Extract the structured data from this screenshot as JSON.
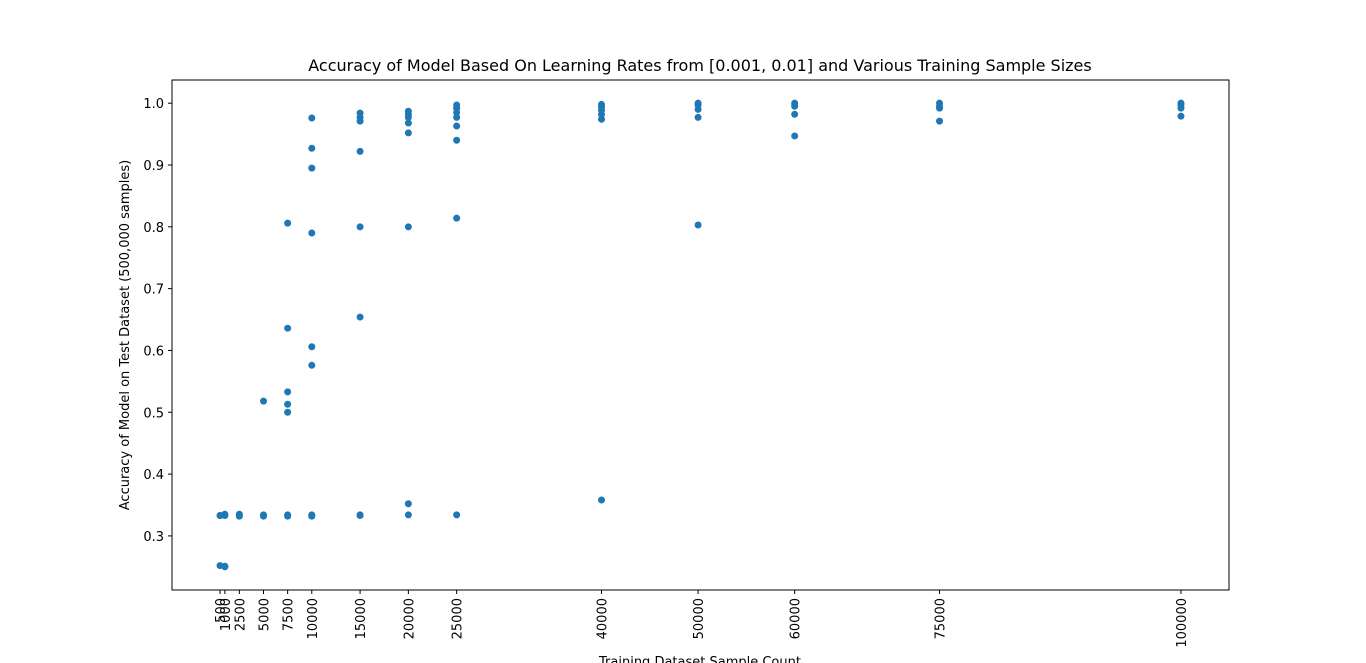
{
  "chart_data": {
    "type": "scatter",
    "title": "Accuracy of Model Based On Learning Rates from [0.001, 0.01] and Various Training Sample Sizes",
    "x_label": "Training Dataset Sample Count",
    "y_label": "Accuracy of Model on Test Dataset (500,000 samples)",
    "series": [
      {
        "color": "#1f77b4",
        "x": [
          500,
          500,
          500,
          1000,
          1000,
          1000,
          1000,
          2500,
          2500,
          5000,
          5000,
          5000,
          7500,
          7500,
          7500,
          7500,
          7500,
          7500,
          7500,
          10000,
          10000,
          10000,
          10000,
          10000,
          10000,
          10000,
          10000,
          15000,
          15000,
          15000,
          15000,
          15000,
          15000,
          15000,
          15000,
          20000,
          20000,
          20000,
          20000,
          20000,
          20000,
          20000,
          20000,
          25000,
          25000,
          25000,
          25000,
          25000,
          25000,
          25000,
          25000,
          40000,
          40000,
          40000,
          40000,
          40000,
          40000,
          50000,
          50000,
          50000,
          50000,
          50000,
          60000,
          60000,
          60000,
          60000,
          75000,
          75000,
          75000,
          75000,
          100000,
          100000,
          100000,
          100000
        ],
        "values": [
          0.333,
          0.333,
          0.252,
          0.335,
          0.333,
          0.25,
          0.251,
          0.335,
          0.332,
          0.518,
          0.334,
          0.332,
          0.806,
          0.636,
          0.533,
          0.513,
          0.5,
          0.334,
          0.332,
          0.976,
          0.927,
          0.895,
          0.79,
          0.606,
          0.576,
          0.334,
          0.332,
          0.984,
          0.977,
          0.971,
          0.922,
          0.8,
          0.654,
          0.334,
          0.333,
          0.987,
          0.982,
          0.977,
          0.968,
          0.952,
          0.8,
          0.352,
          0.334,
          0.997,
          0.992,
          0.985,
          0.977,
          0.963,
          0.94,
          0.814,
          0.334,
          0.998,
          0.994,
          0.989,
          0.982,
          0.974,
          0.358,
          1.0,
          0.997,
          0.99,
          0.977,
          0.803,
          1.0,
          0.995,
          0.982,
          0.947,
          1.0,
          0.995,
          0.992,
          0.971,
          1.0,
          0.997,
          0.992,
          0.979
        ]
      }
    ],
    "xlim": [
      -4475,
      104975
    ],
    "xticks": [
      500,
      1000,
      2500,
      5000,
      7500,
      10000,
      15000,
      20000,
      25000,
      40000,
      50000,
      60000,
      75000,
      100000
    ],
    "ylim": [
      0.2125,
      1.0375
    ],
    "yticks": [
      0.3,
      0.4,
      0.5,
      0.6,
      0.7,
      0.8,
      0.9,
      {
        "value": 1,
        "label": "1.0"
      }
    ]
  }
}
